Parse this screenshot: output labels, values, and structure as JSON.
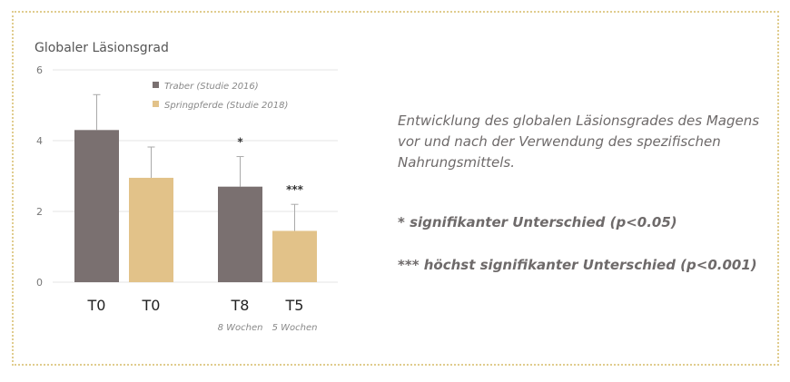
{
  "chart_data": {
    "type": "bar",
    "title": "Globaler Läsionsgrad",
    "xlabel": "",
    "ylabel": "",
    "ylim": [
      0,
      6
    ],
    "yticks": [
      0,
      2,
      4,
      6
    ],
    "grid": true,
    "legend_position": "top-center",
    "series": [
      {
        "name": "Traber (Studie 2016)",
        "color": "#7a7070"
      },
      {
        "name": "Springpferde (Studie 2018)",
        "color": "#e2c289"
      }
    ],
    "bars": [
      {
        "label": "T0",
        "sublabel": "",
        "series": 0,
        "value": 4.3,
        "error_upper": 5.3,
        "annotation": ""
      },
      {
        "label": "T0",
        "sublabel": "",
        "series": 1,
        "value": 2.95,
        "error_upper": 3.82,
        "annotation": ""
      },
      {
        "label": "T8",
        "sublabel": "8 Wochen",
        "series": 0,
        "value": 2.7,
        "error_upper": 3.55,
        "annotation": "*"
      },
      {
        "label": "T5",
        "sublabel": "5 Wochen",
        "series": 1,
        "value": 1.45,
        "error_upper": 2.2,
        "annotation": "***"
      }
    ]
  },
  "text": {
    "description": "Entwicklung des globalen Läsionsgrades des Magens vor und nach der Verwendung des spezifischen Nahrungsmittels.",
    "sig1": "* signifikanter Unterschied (p<0.05)",
    "sig2": "*** höchst signifikanter Unterschied (p<0.001)"
  }
}
